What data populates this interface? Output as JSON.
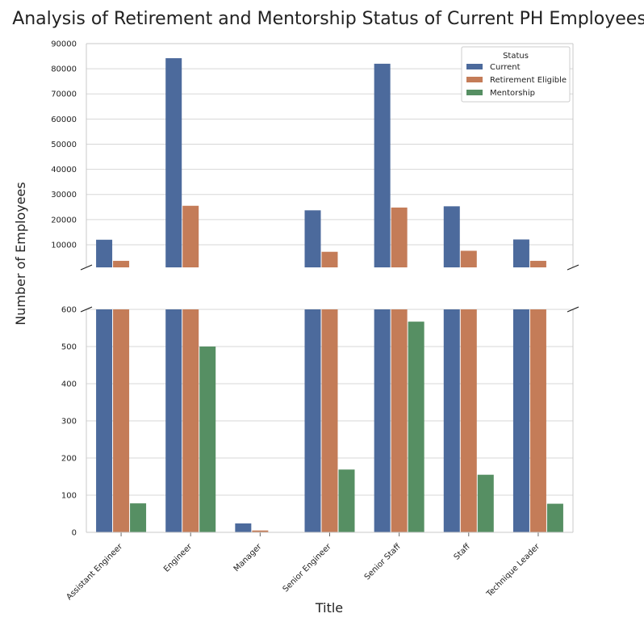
{
  "chart_data": {
    "type": "bar",
    "title": "Analysis of Retirement and Mentorship Status of Current PH Employees",
    "xlabel": "Title",
    "ylabel": "Number of Employees",
    "categories": [
      "Assistant Engineer",
      "Engineer",
      "Manager",
      "Senior Engineer",
      "Senior Staff",
      "Staff",
      "Technique Leader"
    ],
    "series": [
      {
        "name": "Current",
        "color": "#4C6A9C",
        "values": [
          12000,
          84200,
          24,
          23700,
          82000,
          25300,
          12100
        ]
      },
      {
        "name": "Retirement Eligible",
        "color": "#C47C58",
        "values": [
          3600,
          25500,
          5,
          7200,
          24800,
          7600,
          3600
        ]
      },
      {
        "name": "Mentorship",
        "color": "#568F63",
        "values": [
          78,
          500,
          0,
          169,
          567,
          155,
          77
        ]
      }
    ],
    "legend": {
      "title": "Status",
      "position": "top-right"
    },
    "upper_panel": {
      "ylim": [
        0,
        90000
      ],
      "yticks": [
        10000,
        20000,
        30000,
        40000,
        50000,
        60000,
        70000,
        80000,
        90000
      ],
      "tick_labels": [
        "10000",
        "20000",
        "30000",
        "40000",
        "50000",
        "60000",
        "70000",
        "80000",
        "90000"
      ]
    },
    "lower_panel": {
      "ylim": [
        0,
        600
      ],
      "yticks": [
        0,
        100,
        200,
        300,
        400,
        500,
        600
      ],
      "tick_labels": [
        "0",
        "100",
        "200",
        "300",
        "400",
        "500",
        "600"
      ]
    },
    "grid": true,
    "broken_axis": true
  }
}
